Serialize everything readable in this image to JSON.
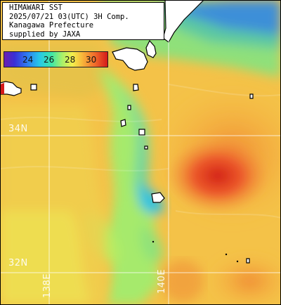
{
  "header": {
    "lines": [
      "HIMAWARI SST",
      "2025/07/21 03(UTC) 3H Comp.",
      "Kanagawa Prefecture",
      "supplied by JAXA"
    ]
  },
  "legend": {
    "ticks": [
      "24",
      "26",
      "28",
      "30"
    ],
    "colors": {
      "cold": "#3a2fd6",
      "mid": "#a8f06a",
      "warm": "#f7b43a",
      "hot": "#d41a1a"
    }
  },
  "grid": {
    "lat_labels": [
      "34N",
      "32N"
    ],
    "lon_labels": [
      "138E",
      "140E"
    ]
  },
  "map": {
    "land_color": "#ffffff",
    "background_sea": "#f4c248"
  }
}
